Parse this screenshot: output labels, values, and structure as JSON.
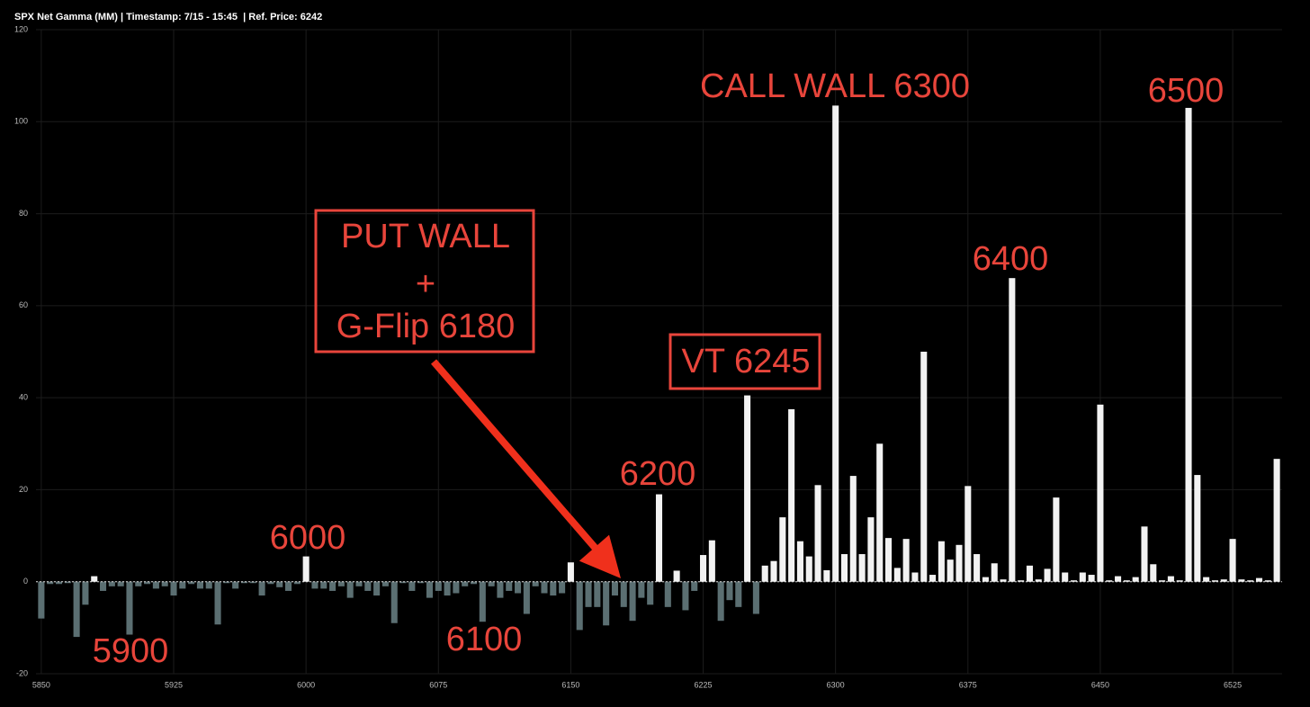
{
  "chart_data": {
    "type": "bar",
    "title": "SPX Net Gamma (MM) | Timestamp: 7/15 - 15:45  | Ref. Price: 6242",
    "x": [
      5850,
      5855,
      5860,
      5865,
      5870,
      5875,
      5880,
      5885,
      5890,
      5895,
      5900,
      5905,
      5910,
      5915,
      5920,
      5925,
      5930,
      5935,
      5940,
      5945,
      5950,
      5955,
      5960,
      5965,
      5970,
      5975,
      5980,
      5985,
      5990,
      5995,
      6000,
      6005,
      6010,
      6015,
      6020,
      6025,
      6030,
      6035,
      6040,
      6045,
      6050,
      6055,
      6060,
      6065,
      6070,
      6075,
      6080,
      6085,
      6090,
      6095,
      6100,
      6105,
      6110,
      6115,
      6120,
      6125,
      6130,
      6135,
      6140,
      6145,
      6150,
      6155,
      6160,
      6165,
      6170,
      6175,
      6180,
      6185,
      6190,
      6195,
      6200,
      6205,
      6210,
      6215,
      6220,
      6225,
      6230,
      6235,
      6240,
      6245,
      6250,
      6255,
      6260,
      6265,
      6270,
      6275,
      6280,
      6285,
      6290,
      6295,
      6300,
      6305,
      6310,
      6315,
      6320,
      6325,
      6330,
      6335,
      6340,
      6345,
      6350,
      6355,
      6360,
      6365,
      6370,
      6375,
      6380,
      6385,
      6390,
      6395,
      6400,
      6405,
      6410,
      6415,
      6420,
      6425,
      6430,
      6435,
      6440,
      6445,
      6450,
      6455,
      6460,
      6465,
      6470,
      6475,
      6480,
      6485,
      6490,
      6495,
      6500,
      6505,
      6510,
      6515,
      6520,
      6525,
      6530,
      6535,
      6540,
      6545,
      6550
    ],
    "values": [
      -8,
      -0.5,
      -0.5,
      -0.3,
      -12,
      -5,
      1.2,
      -2,
      -1,
      -1,
      -11.5,
      -1,
      -0.5,
      -1.5,
      -1,
      -3,
      -1.5,
      -0.5,
      -1.5,
      -1.5,
      -9.3,
      -0.3,
      -1.5,
      -0.3,
      -0.3,
      -3,
      -0.5,
      -1.2,
      -2,
      -0.5,
      5.5,
      -1.5,
      -1.5,
      -2,
      -1,
      -3.5,
      -1,
      -2,
      -3,
      -1,
      -9,
      -0.3,
      -2,
      -0.3,
      -3.5,
      -2,
      -3,
      -2.5,
      -1,
      -0.5,
      -8.7,
      -1,
      -3.5,
      -2,
      -2.5,
      -7,
      -1,
      -2.5,
      -3,
      -2.5,
      4.2,
      -10.5,
      -5.5,
      -5.5,
      -9.5,
      -3,
      -5.5,
      -8.5,
      -3.5,
      -5,
      19,
      -5.5,
      2.4,
      -6.2,
      -2,
      5.8,
      9,
      -8.5,
      -4,
      -5.5,
      40.5,
      -7,
      3.5,
      4.5,
      14,
      37.5,
      8.8,
      5.5,
      21,
      2.5,
      103.5,
      6,
      23,
      6,
      14,
      30,
      9.5,
      3,
      9.3,
      2,
      50,
      1.5,
      8.8,
      4.8,
      8,
      20.8,
      6,
      1,
      4,
      0.5,
      66,
      0.3,
      3.5,
      0.5,
      2.8,
      18.3,
      2,
      0.3,
      2,
      1.5,
      38.5,
      0.3,
      1.2,
      0.3,
      1,
      12,
      3.8,
      0.3,
      1.2,
      0.3,
      103,
      23.2,
      1,
      0.3,
      0.5,
      9.3,
      0.5,
      0.3,
      0.8,
      0.3,
      26.7
    ],
    "positive_color": "#f2f2f2",
    "negative_color": "#5b6f72",
    "xlim": [
      5847,
      6553
    ],
    "xticks": [
      5850,
      5925,
      6000,
      6075,
      6150,
      6225,
      6300,
      6375,
      6450,
      6525
    ],
    "ylim": [
      -20,
      120
    ],
    "yticks": [
      -20,
      0,
      20,
      40,
      60,
      80,
      100,
      120
    ],
    "grid": true,
    "annotations": [
      "CALL WALL 6300",
      "6500",
      "6400",
      "PUT WALL",
      "+",
      "G-Flip 6180",
      "VT 6245",
      "6200",
      "6000",
      "5900",
      "6100"
    ]
  }
}
